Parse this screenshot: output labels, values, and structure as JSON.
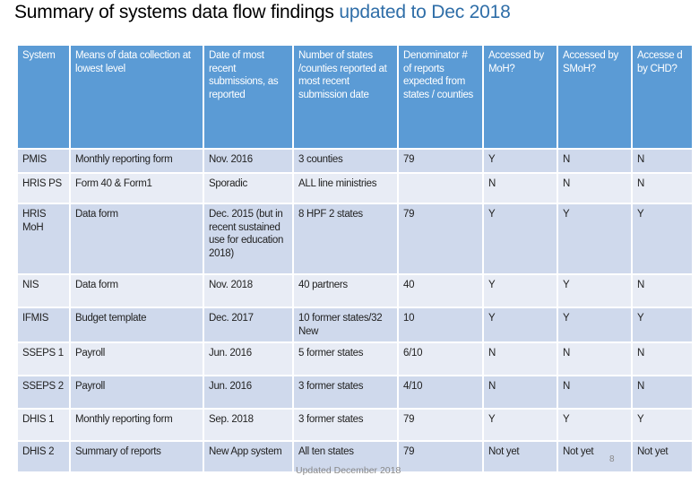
{
  "title": {
    "main": "Summary of systems data flow findings ",
    "highlight": "updated to Dec 2018"
  },
  "headers": [
    "System",
    "Means of data collection at lowest level",
    "Date of most recent submissions, as reported",
    "Number of states /counties reported at most recent submission date",
    "Denominator # of reports expected from states / counties",
    "Accessed by MoH?",
    "Accessed by SMoH?",
    "Accesse d by CHD?"
  ],
  "rows": [
    [
      "PMIS",
      "Monthly reporting form",
      "Nov. 2016",
      "3 counties",
      "79",
      "Y",
      "N",
      "N"
    ],
    [
      "HRIS PS",
      "Form 40 & Form1",
      "Sporadic",
      "ALL line ministries",
      "",
      "N",
      "N",
      "N"
    ],
    [
      "HRIS MoH",
      "Data form",
      "Dec. 2015 (but in recent sustained use for education 2018)",
      "8 HPF 2 states",
      "79",
      "Y",
      "Y",
      "Y"
    ],
    [
      "NIS",
      "Data form",
      "Nov. 2018",
      "40 partners",
      "40",
      "Y",
      "Y",
      "N"
    ],
    [
      "IFMIS",
      "Budget template",
      "Dec. 2017",
      "10 former states/32 New",
      "10",
      "Y",
      "Y",
      "Y"
    ],
    [
      "SSEPS 1",
      "Payroll",
      "Jun. 2016",
      "5 former states",
      "6/10",
      "N",
      "N",
      "N"
    ],
    [
      "SSEPS 2",
      "Payroll",
      "Jun. 2016",
      "3 former states",
      "4/10",
      "N",
      "N",
      "N"
    ],
    [
      "DHIS 1",
      "Monthly reporting form",
      "Sep. 2018",
      "3 former states",
      "79",
      "Y",
      "Y",
      "Y"
    ],
    [
      "DHIS 2",
      "Summary of reports",
      "New App system",
      "All ten states",
      "79",
      "Not yet",
      "Not yet",
      "Not yet"
    ]
  ],
  "footer": "Updated December 2018",
  "page_number": "8",
  "colors": {
    "header": "#5b9bd5",
    "row_odd": "#cfd9ec",
    "row_even": "#e8ecf5",
    "title_highlight": "#2f6ea8"
  }
}
